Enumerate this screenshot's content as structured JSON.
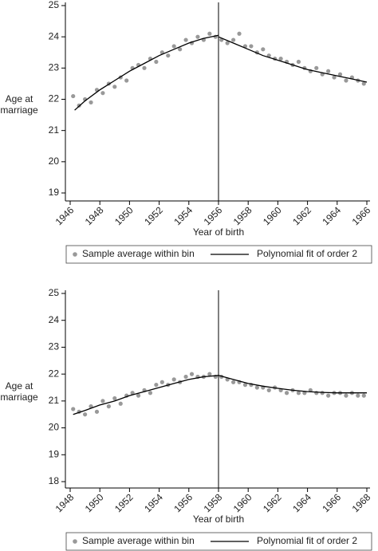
{
  "chart_data": [
    {
      "type": "scatter",
      "y_label": [
        "Age at",
        "marriage"
      ],
      "x_label": "Year of birth",
      "xlim": [
        1946,
        1966
      ],
      "xticks": [
        1946,
        1948,
        1950,
        1952,
        1954,
        1956,
        1958,
        1960,
        1962,
        1964,
        1966
      ],
      "ylim": [
        19,
        25
      ],
      "yticks": [
        19,
        20,
        21,
        22,
        23,
        24,
        25
      ],
      "vline": 1956,
      "series": [
        {
          "name": "Sample average within bin",
          "color": "#999999",
          "mode": "points",
          "x": [
            1946.2,
            1946.6,
            1947.0,
            1947.4,
            1947.8,
            1948.2,
            1948.6,
            1949.0,
            1949.4,
            1949.8,
            1950.2,
            1950.6,
            1951.0,
            1951.4,
            1951.8,
            1952.2,
            1952.6,
            1953.0,
            1953.4,
            1953.8,
            1954.2,
            1954.6,
            1955.0,
            1955.4,
            1955.8,
            1956.2,
            1956.6,
            1957.0,
            1957.4,
            1957.8,
            1958.2,
            1958.6,
            1959.0,
            1959.4,
            1959.8,
            1960.2,
            1960.6,
            1961.0,
            1961.4,
            1961.8,
            1962.2,
            1962.6,
            1963.0,
            1963.4,
            1963.8,
            1964.2,
            1964.6,
            1965.0,
            1965.4,
            1965.8
          ],
          "values": [
            22.1,
            21.8,
            22.0,
            21.9,
            22.3,
            22.2,
            22.5,
            22.4,
            22.7,
            22.6,
            23.0,
            23.1,
            23.0,
            23.3,
            23.2,
            23.5,
            23.4,
            23.7,
            23.6,
            23.9,
            23.8,
            24.0,
            23.9,
            24.1,
            24.0,
            23.9,
            23.8,
            23.9,
            24.1,
            23.7,
            23.7,
            23.5,
            23.6,
            23.4,
            23.3,
            23.3,
            23.2,
            23.1,
            23.2,
            23.0,
            22.9,
            23.0,
            22.8,
            22.9,
            22.7,
            22.8,
            22.6,
            22.7,
            22.6,
            22.5
          ]
        },
        {
          "name": "Polynomial fit of order 2",
          "color": "#000000",
          "mode": "line",
          "x": [
            1946.3,
            1947,
            1948,
            1949,
            1950,
            1951,
            1952,
            1953,
            1954,
            1955,
            1956,
            1956,
            1956,
            1957,
            1958,
            1959,
            1960,
            1961,
            1962,
            1963,
            1964,
            1965,
            1966
          ],
          "values": [
            21.65,
            21.95,
            22.3,
            22.6,
            22.9,
            23.15,
            23.4,
            23.6,
            23.8,
            23.95,
            24.05,
            null,
            24.0,
            23.8,
            23.6,
            23.4,
            23.25,
            23.1,
            22.95,
            22.85,
            22.75,
            22.65,
            22.55
          ]
        }
      ]
    },
    {
      "type": "scatter",
      "y_label": [
        "Age at",
        "marriage"
      ],
      "x_label": "Year of birth",
      "xlim": [
        1948,
        1968
      ],
      "xticks": [
        1948,
        1950,
        1952,
        1954,
        1956,
        1958,
        1960,
        1962,
        1964,
        1966,
        1968
      ],
      "ylim": [
        18,
        25
      ],
      "yticks": [
        18,
        19,
        20,
        21,
        22,
        23,
        24,
        25
      ],
      "vline": 1958,
      "series": [
        {
          "name": "Sample average within bin",
          "color": "#999999",
          "mode": "points",
          "x": [
            1948.2,
            1948.6,
            1949.0,
            1949.4,
            1949.8,
            1950.2,
            1950.6,
            1951.0,
            1951.4,
            1951.8,
            1952.2,
            1952.6,
            1953.0,
            1953.4,
            1953.8,
            1954.2,
            1954.6,
            1955.0,
            1955.4,
            1955.8,
            1956.2,
            1956.6,
            1957.0,
            1957.4,
            1957.8,
            1958.2,
            1958.6,
            1959.0,
            1959.4,
            1959.8,
            1960.2,
            1960.6,
            1961.0,
            1961.4,
            1961.8,
            1962.2,
            1962.6,
            1963.0,
            1963.4,
            1963.8,
            1964.2,
            1964.6,
            1965.0,
            1965.4,
            1965.8,
            1966.2,
            1966.6,
            1967.0,
            1967.4,
            1967.8
          ],
          "values": [
            20.7,
            20.6,
            20.5,
            20.8,
            20.6,
            21.0,
            20.8,
            21.1,
            20.9,
            21.2,
            21.3,
            21.2,
            21.4,
            21.3,
            21.6,
            21.7,
            21.6,
            21.8,
            21.7,
            21.9,
            22.0,
            21.9,
            21.9,
            22.0,
            21.9,
            21.9,
            21.8,
            21.7,
            21.7,
            21.6,
            21.6,
            21.5,
            21.5,
            21.4,
            21.5,
            21.4,
            21.3,
            21.4,
            21.3,
            21.3,
            21.4,
            21.3,
            21.3,
            21.2,
            21.3,
            21.3,
            21.2,
            21.3,
            21.2,
            21.2
          ]
        },
        {
          "name": "Polynomial fit of order 2",
          "color": "#000000",
          "mode": "line",
          "x": [
            1948.2,
            1949,
            1950,
            1951,
            1952,
            1953,
            1954,
            1955,
            1956,
            1957,
            1958,
            1958,
            1958,
            1959,
            1960,
            1961,
            1962,
            1963,
            1964,
            1965,
            1966,
            1967,
            1968
          ],
          "values": [
            20.5,
            20.65,
            20.85,
            21.0,
            21.2,
            21.35,
            21.5,
            21.65,
            21.8,
            21.9,
            21.95,
            null,
            21.95,
            21.8,
            21.65,
            21.55,
            21.47,
            21.4,
            21.35,
            21.32,
            21.3,
            21.3,
            21.3
          ]
        }
      ]
    }
  ]
}
